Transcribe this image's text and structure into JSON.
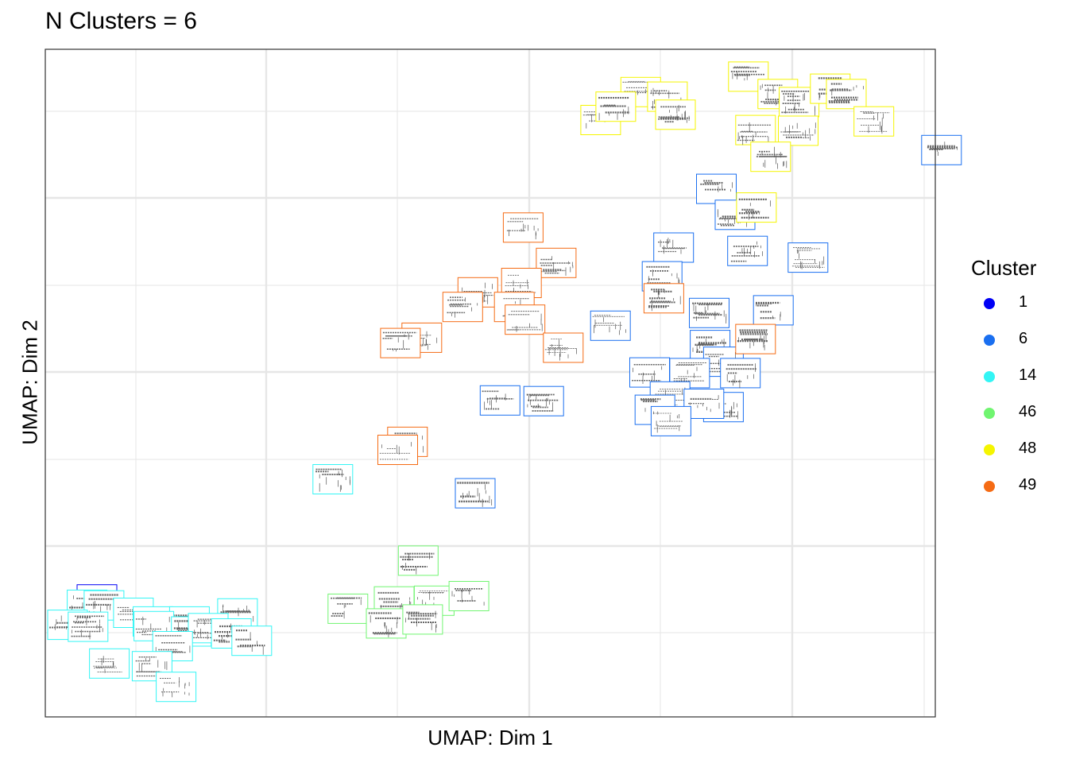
{
  "chart_data": {
    "type": "scatter",
    "title": "N Clusters = 6",
    "xlabel": "UMAP: Dim 1",
    "ylabel": "UMAP: Dim 2",
    "xlim": [
      0,
      100
    ],
    "ylim": [
      0,
      100
    ],
    "x_ticks_shown": false,
    "y_ticks_shown": false,
    "grid": true,
    "marker": "spectrogram-thumbnail",
    "legend": {
      "title": "Cluster",
      "position": "right",
      "entries": [
        {
          "label": "1",
          "color": "#0000f5"
        },
        {
          "label": "6",
          "color": "#1a6ff0"
        },
        {
          "label": "14",
          "color": "#33f5f5"
        },
        {
          "label": "46",
          "color": "#70f570"
        },
        {
          "label": "48",
          "color": "#f5f500"
        },
        {
          "label": "49",
          "color": "#f56b14"
        }
      ]
    },
    "series": [
      {
        "cluster": "1",
        "color": "#0000f5",
        "points": [
          {
            "x": 5.8,
            "y": 17.6
          }
        ]
      },
      {
        "cluster": "6",
        "color": "#1a6ff0",
        "points": [
          {
            "x": 100.7,
            "y": 84.9
          },
          {
            "x": 75.4,
            "y": 79.1
          },
          {
            "x": 77.5,
            "y": 75.2
          },
          {
            "x": 70.6,
            "y": 70.3
          },
          {
            "x": 78.9,
            "y": 69.8
          },
          {
            "x": 85.7,
            "y": 68.8
          },
          {
            "x": 69.3,
            "y": 66.0
          },
          {
            "x": 74.6,
            "y": 60.5
          },
          {
            "x": 81.8,
            "y": 60.9
          },
          {
            "x": 63.5,
            "y": 58.6
          },
          {
            "x": 74.7,
            "y": 55.7
          },
          {
            "x": 76.2,
            "y": 53.2
          },
          {
            "x": 67.9,
            "y": 51.6
          },
          {
            "x": 72.4,
            "y": 51.5
          },
          {
            "x": 78.1,
            "y": 51.5
          },
          {
            "x": 70.2,
            "y": 48.0
          },
          {
            "x": 76.2,
            "y": 46.4
          },
          {
            "x": 68.5,
            "y": 46.0
          },
          {
            "x": 74.0,
            "y": 46.9
          },
          {
            "x": 70.3,
            "y": 44.3
          },
          {
            "x": 51.1,
            "y": 47.4
          },
          {
            "x": 56.0,
            "y": 47.3
          },
          {
            "x": 48.3,
            "y": 33.5
          }
        ]
      },
      {
        "cluster": "14",
        "color": "#33f5f5",
        "points": [
          {
            "x": 4.7,
            "y": 16.8
          },
          {
            "x": 6.6,
            "y": 16.7
          },
          {
            "x": 9.9,
            "y": 15.6
          },
          {
            "x": 12.1,
            "y": 14.3
          },
          {
            "x": 16.2,
            "y": 14.3
          },
          {
            "x": 21.6,
            "y": 15.5
          },
          {
            "x": 2.5,
            "y": 13.8
          },
          {
            "x": 4.8,
            "y": 13.5
          },
          {
            "x": 12.2,
            "y": 13.6
          },
          {
            "x": 16.4,
            "y": 12.8
          },
          {
            "x": 18.3,
            "y": 13.3
          },
          {
            "x": 20.9,
            "y": 12.5
          },
          {
            "x": 14.3,
            "y": 10.6
          },
          {
            "x": 23.2,
            "y": 11.4
          },
          {
            "x": 7.2,
            "y": 8.0
          },
          {
            "x": 12.0,
            "y": 7.6
          },
          {
            "x": 14.7,
            "y": 4.5
          },
          {
            "x": 32.3,
            "y": 35.6
          }
        ]
      },
      {
        "cluster": "46",
        "color": "#70f570",
        "points": [
          {
            "x": 41.9,
            "y": 23.4
          },
          {
            "x": 34.0,
            "y": 16.2
          },
          {
            "x": 39.2,
            "y": 17.3
          },
          {
            "x": 43.7,
            "y": 17.4
          },
          {
            "x": 47.6,
            "y": 18.1
          },
          {
            "x": 38.3,
            "y": 14.0
          },
          {
            "x": 42.4,
            "y": 14.6
          }
        ]
      },
      {
        "cluster": "48",
        "color": "#f5f500",
        "points": [
          {
            "x": 66.9,
            "y": 93.6
          },
          {
            "x": 69.9,
            "y": 92.9
          },
          {
            "x": 70.8,
            "y": 90.2
          },
          {
            "x": 62.4,
            "y": 89.4
          },
          {
            "x": 64.1,
            "y": 91.4
          },
          {
            "x": 79.0,
            "y": 95.9
          },
          {
            "x": 82.3,
            "y": 93.3
          },
          {
            "x": 84.7,
            "y": 92.1
          },
          {
            "x": 88.2,
            "y": 94.1
          },
          {
            "x": 90.0,
            "y": 93.3
          },
          {
            "x": 93.1,
            "y": 89.2
          },
          {
            "x": 79.8,
            "y": 87.9
          },
          {
            "x": 84.6,
            "y": 87.8
          },
          {
            "x": 81.5,
            "y": 83.9
          },
          {
            "x": 79.9,
            "y": 76.3
          }
        ]
      },
      {
        "cluster": "49",
        "color": "#f56b14",
        "points": [
          {
            "x": 53.7,
            "y": 73.3
          },
          {
            "x": 57.4,
            "y": 68.0
          },
          {
            "x": 53.5,
            "y": 65.0
          },
          {
            "x": 48.6,
            "y": 63.6
          },
          {
            "x": 46.9,
            "y": 61.4
          },
          {
            "x": 52.7,
            "y": 61.4
          },
          {
            "x": 53.9,
            "y": 59.5
          },
          {
            "x": 42.3,
            "y": 56.8
          },
          {
            "x": 39.9,
            "y": 56.0
          },
          {
            "x": 58.2,
            "y": 55.3
          },
          {
            "x": 69.5,
            "y": 62.7
          },
          {
            "x": 79.8,
            "y": 56.6
          },
          {
            "x": 40.7,
            "y": 41.2
          },
          {
            "x": 39.6,
            "y": 40.0
          }
        ]
      }
    ]
  }
}
